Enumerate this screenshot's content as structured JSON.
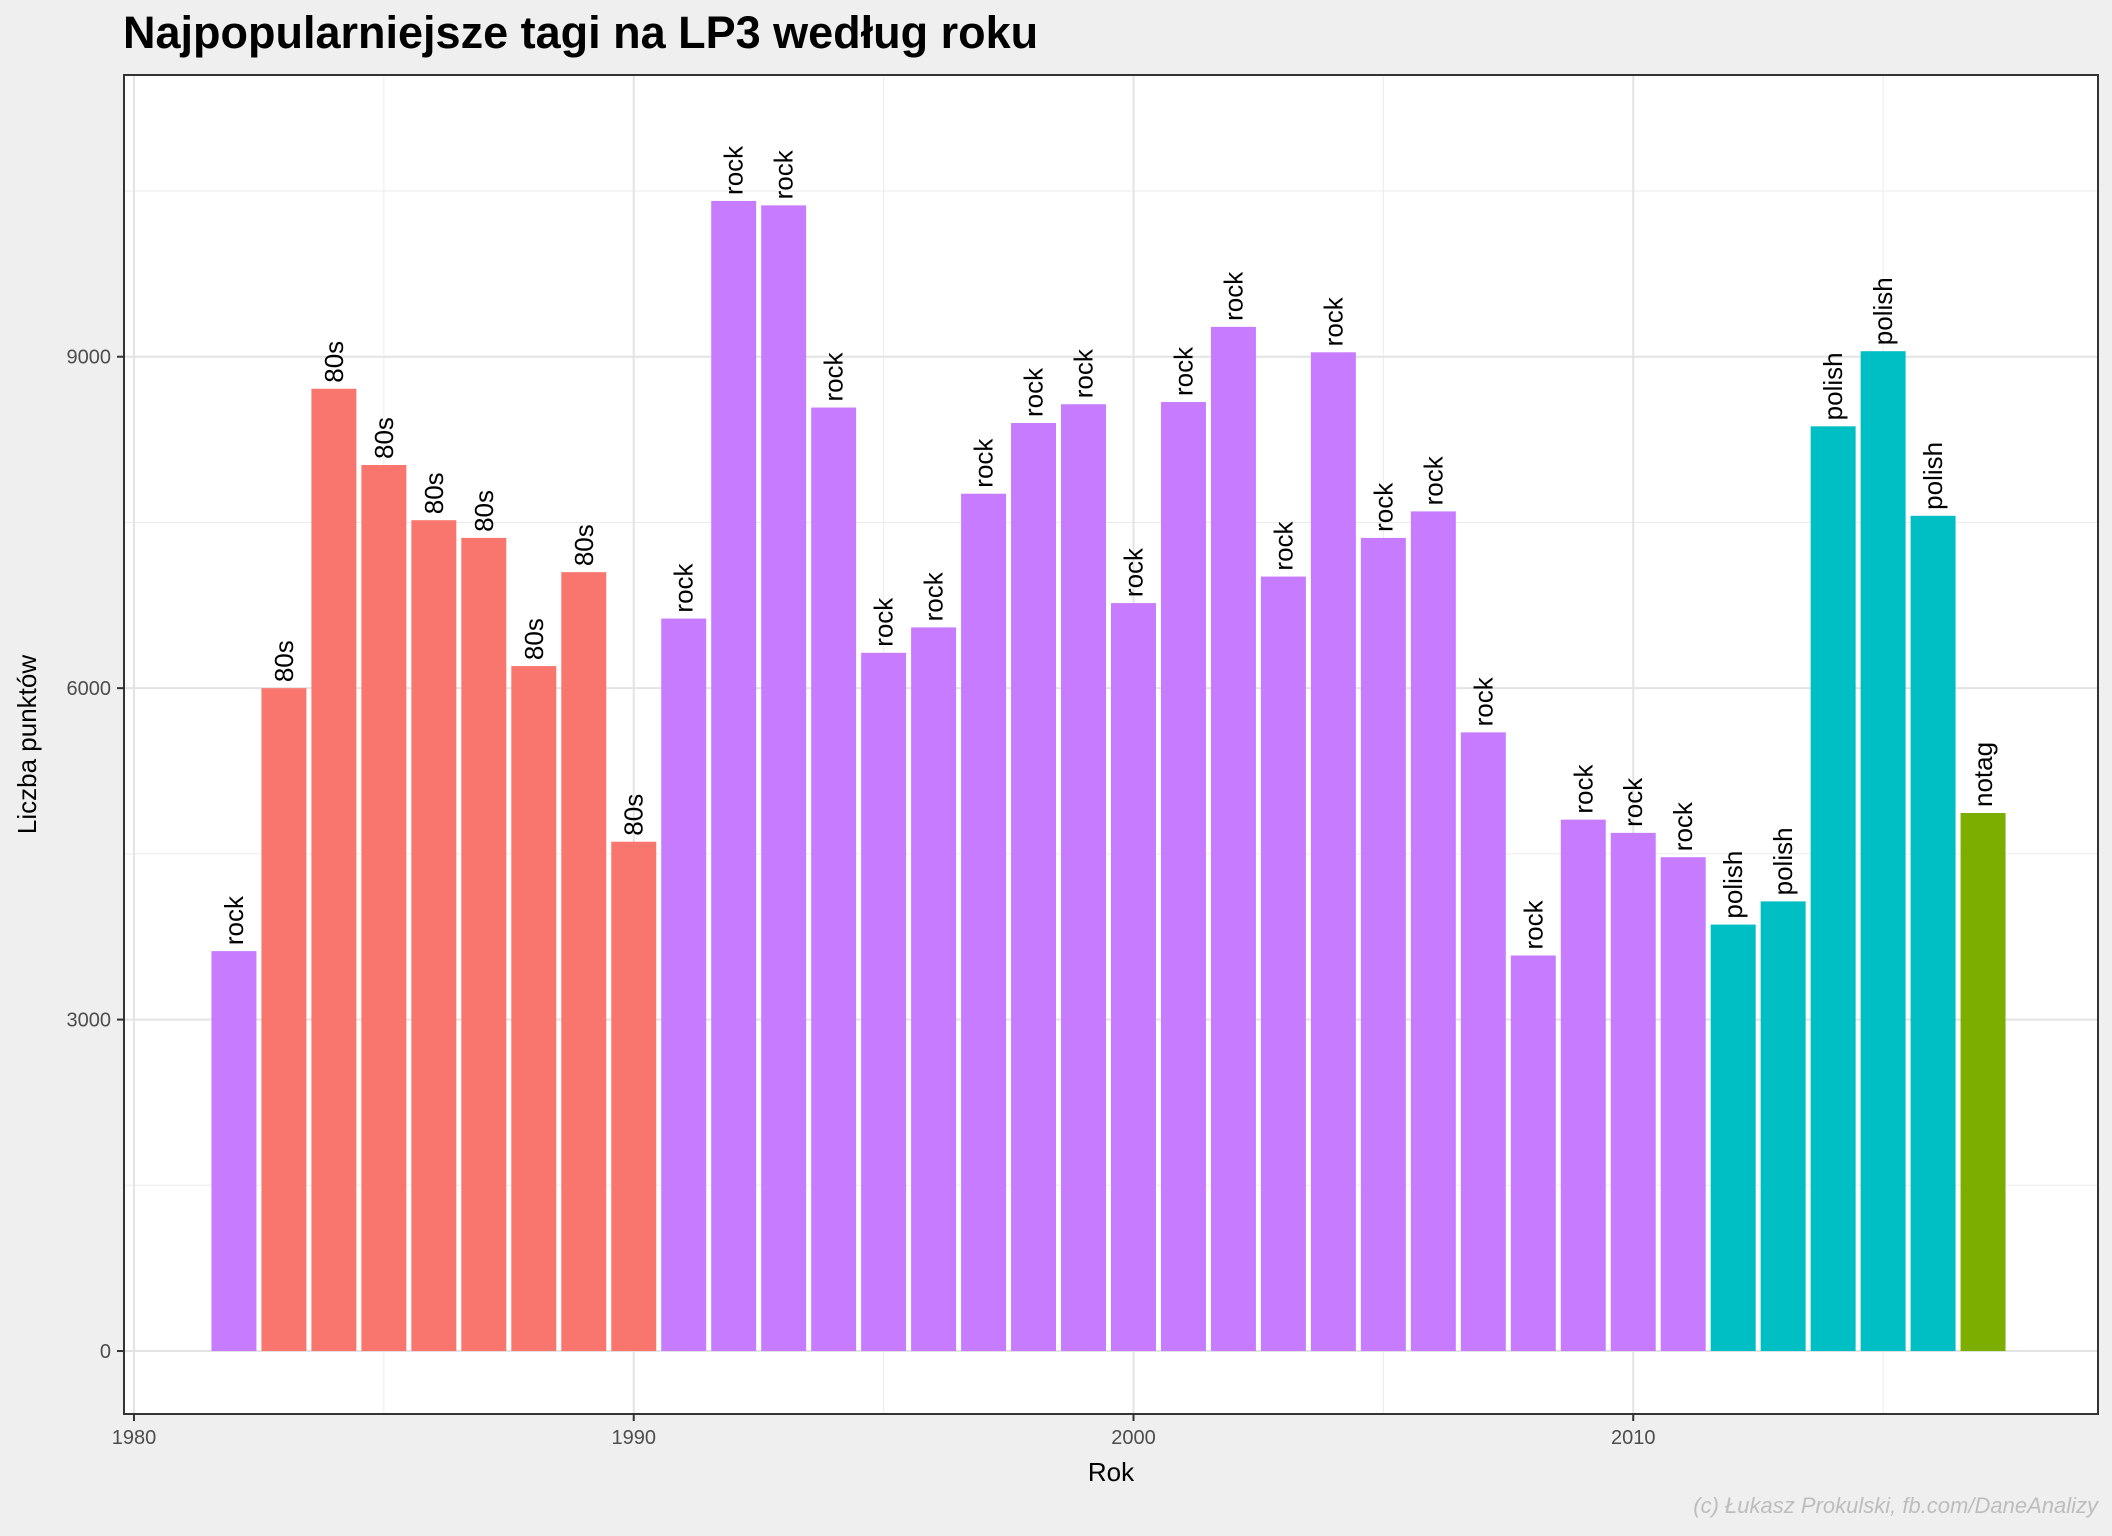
{
  "chart_data": {
    "type": "bar",
    "title": "Najpopularniejsze tagi na LP3 według roku",
    "xlabel": "Rok",
    "ylabel": "Liczba punktów",
    "caption": "(c) Łukasz Prokulski, fb.com/DaneAnalizy",
    "xlim": [
      1979.8,
      2019.3
    ],
    "ylim": [
      -570,
      11550
    ],
    "x_ticks": [
      1980,
      1990,
      2000,
      2010
    ],
    "y_ticks": [
      0,
      3000,
      6000,
      9000
    ],
    "x_tick_labels": [
      "1980",
      "1990",
      "2000",
      "2010"
    ],
    "y_tick_labels": [
      "0",
      "3000",
      "6000",
      "9000"
    ],
    "grid": true,
    "legend": "none",
    "tag_colors": {
      "80s": "#f8766d",
      "rock": "#c77cff",
      "polish": "#00bfc4",
      "notag": "#7cae00"
    },
    "bars": [
      {
        "year": 1982,
        "value": 3620,
        "tag": "rock"
      },
      {
        "year": 1983,
        "value": 6000,
        "tag": "80s"
      },
      {
        "year": 1984,
        "value": 8710,
        "tag": "80s"
      },
      {
        "year": 1985,
        "value": 8020,
        "tag": "80s"
      },
      {
        "year": 1986,
        "value": 7520,
        "tag": "80s"
      },
      {
        "year": 1987,
        "value": 7360,
        "tag": "80s"
      },
      {
        "year": 1988,
        "value": 6200,
        "tag": "80s"
      },
      {
        "year": 1989,
        "value": 7050,
        "tag": "80s"
      },
      {
        "year": 1990,
        "value": 4610,
        "tag": "80s"
      },
      {
        "year": 1991,
        "value": 6630,
        "tag": "rock"
      },
      {
        "year": 1992,
        "value": 10410,
        "tag": "rock"
      },
      {
        "year": 1993,
        "value": 10370,
        "tag": "rock"
      },
      {
        "year": 1994,
        "value": 8540,
        "tag": "rock"
      },
      {
        "year": 1995,
        "value": 6320,
        "tag": "rock"
      },
      {
        "year": 1996,
        "value": 6550,
        "tag": "rock"
      },
      {
        "year": 1997,
        "value": 7760,
        "tag": "rock"
      },
      {
        "year": 1998,
        "value": 8400,
        "tag": "rock"
      },
      {
        "year": 1999,
        "value": 8570,
        "tag": "rock"
      },
      {
        "year": 2000,
        "value": 6770,
        "tag": "rock"
      },
      {
        "year": 2001,
        "value": 8590,
        "tag": "rock"
      },
      {
        "year": 2002,
        "value": 9270,
        "tag": "rock"
      },
      {
        "year": 2003,
        "value": 7010,
        "tag": "rock"
      },
      {
        "year": 2004,
        "value": 9040,
        "tag": "rock"
      },
      {
        "year": 2005,
        "value": 7360,
        "tag": "rock"
      },
      {
        "year": 2006,
        "value": 7600,
        "tag": "rock"
      },
      {
        "year": 2007,
        "value": 5600,
        "tag": "rock"
      },
      {
        "year": 2008,
        "value": 3580,
        "tag": "rock"
      },
      {
        "year": 2009,
        "value": 4810,
        "tag": "rock"
      },
      {
        "year": 2010,
        "value": 4690,
        "tag": "rock"
      },
      {
        "year": 2011,
        "value": 4470,
        "tag": "rock"
      },
      {
        "year": 2012,
        "value": 3860,
        "tag": "polish"
      },
      {
        "year": 2013,
        "value": 4070,
        "tag": "polish"
      },
      {
        "year": 2014,
        "value": 8370,
        "tag": "polish"
      },
      {
        "year": 2015,
        "value": 9050,
        "tag": "polish"
      },
      {
        "year": 2016,
        "value": 7560,
        "tag": "polish"
      },
      {
        "year": 2017,
        "value": 4870,
        "tag": "notag"
      }
    ]
  }
}
